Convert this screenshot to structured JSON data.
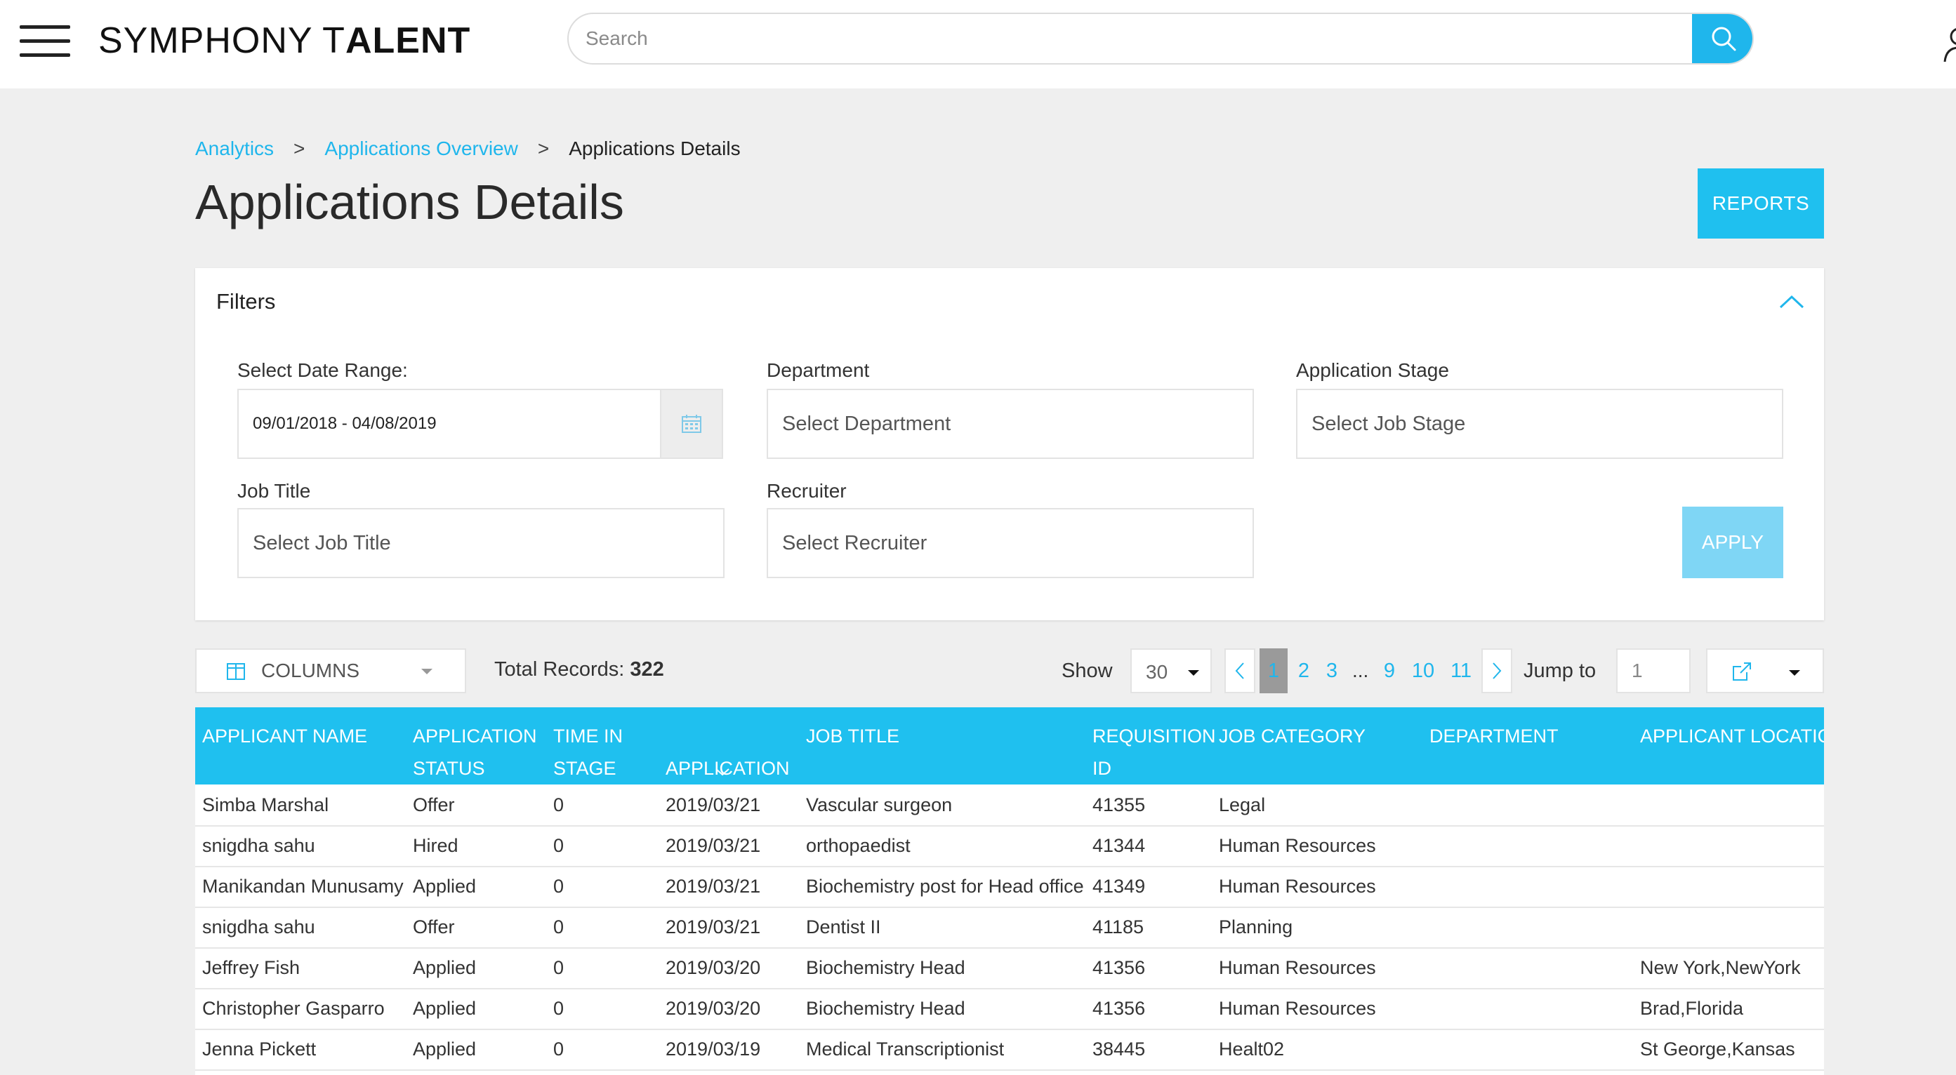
{
  "header": {
    "logo_part1": "SYMPHONY T",
    "logo_part2": "ALENT",
    "search_placeholder": "Search"
  },
  "breadcrumb": {
    "items": [
      "Analytics",
      "Applications Overview"
    ],
    "separator": ">",
    "current": "Applications Details"
  },
  "page": {
    "title": "Applications Details",
    "reports_label": "REPORTS"
  },
  "filters": {
    "title": "Filters",
    "date_range_label": "Select Date Range:",
    "date_range_value": "09/01/2018 - 04/08/2019",
    "department_label": "Department",
    "department_placeholder": "Select Department",
    "stage_label": "Application Stage",
    "stage_placeholder": "Select Job Stage",
    "job_title_label": "Job Title",
    "job_title_placeholder": "Select Job Title",
    "recruiter_label": "Recruiter",
    "recruiter_placeholder": "Select Recruiter",
    "apply_label": "APPLY"
  },
  "toolbar": {
    "columns_label": "COLUMNS",
    "total_label": "Total Records:",
    "total_value": "322",
    "show_label": "Show",
    "show_value": "30",
    "pages": [
      "1",
      "2",
      "3",
      "9",
      "10",
      "11"
    ],
    "active_page": "1",
    "ellipsis": "...",
    "jump_label": "Jump to",
    "jump_value": "1"
  },
  "table": {
    "columns": [
      "APPLICANT NAME",
      "APPLICATION\nSTATUS",
      "TIME IN\nSTAGE",
      "APPLICATION\nDATE",
      "JOB TITLE",
      "REQUISITION\nID",
      "JOB CATEGORY",
      "DEPARTMENT",
      "APPLICANT LOCATION"
    ],
    "rows": [
      [
        "Simba Marshal",
        "Offer",
        "0",
        "2019/03/21",
        "Vascular surgeon",
        "41355",
        "Legal",
        "",
        ""
      ],
      [
        "snigdha sahu",
        "Hired",
        "0",
        "2019/03/21",
        "orthopaedist",
        "41344",
        "Human Resources",
        "",
        ""
      ],
      [
        "Manikandan Munusamy",
        "Applied",
        "0",
        "2019/03/21",
        "Biochemistry post for Head office",
        "41349",
        "Human Resources",
        "",
        ""
      ],
      [
        "snigdha sahu",
        "Offer",
        "0",
        "2019/03/21",
        "Dentist II",
        "41185",
        "Planning",
        "",
        ""
      ],
      [
        "Jeffrey Fish",
        "Applied",
        "0",
        "2019/03/20",
        "Biochemistry Head",
        "41356",
        "Human Resources",
        "",
        "New York,NewYork"
      ],
      [
        "Christopher Gasparro",
        "Applied",
        "0",
        "2019/03/20",
        "Biochemistry Head",
        "41356",
        "Human Resources",
        "",
        "Brad,Florida"
      ],
      [
        "Jenna Pickett",
        "Applied",
        "0",
        "2019/03/19",
        "Medical Transcriptionist",
        "38445",
        "Healt02",
        "",
        "St George,Kansas"
      ]
    ]
  },
  "colors": {
    "accent": "#1fb6ec",
    "header_bg": "#1fc0ef",
    "apply_disabled": "#7fd6f5"
  },
  "icons": [
    "menu-icon",
    "search-icon",
    "user-icon",
    "chevron-up-icon",
    "calendar-icon",
    "columns-icon",
    "caret-down-icon",
    "chevron-left-icon",
    "chevron-right-icon",
    "export-icon",
    "sort-down-icon"
  ]
}
